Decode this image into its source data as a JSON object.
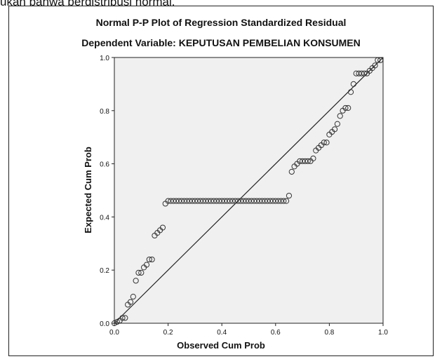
{
  "page": {
    "caption_fragment": "ukan bahwa berdistribusi normal."
  },
  "chart_data": {
    "type": "scatter",
    "title": "Normal P-P Plot of Regression Standardized Residual",
    "subtitle": "Dependent Variable: KEPUTUSAN PEMBELIAN KONSUMEN",
    "xlabel": "Observed Cum Prob",
    "ylabel": "Expected Cum Prob",
    "xlim": [
      0.0,
      1.0
    ],
    "ylim": [
      0.0,
      1.0
    ],
    "xticks": [
      0.0,
      0.2,
      0.4,
      0.6,
      0.8,
      1.0
    ],
    "yticks": [
      0.0,
      0.2,
      0.4,
      0.6,
      0.8,
      1.0
    ],
    "tick_labels": [
      "0.0",
      "0.2",
      "0.4",
      "0.6",
      "0.8",
      "1.0"
    ],
    "grid": false,
    "reference_line": {
      "from": [
        0,
        0
      ],
      "to": [
        1,
        1
      ]
    },
    "colors": {
      "plot_bg": "#f0f0f0",
      "marker": "#333333",
      "line": "#222222"
    },
    "series": [
      {
        "x": [
          0.0,
          0.01,
          0.02,
          0.03,
          0.04,
          0.05,
          0.06,
          0.07,
          0.08,
          0.09,
          0.1,
          0.11,
          0.12,
          0.13,
          0.14,
          0.15,
          0.16,
          0.17,
          0.18,
          0.19,
          0.2,
          0.21,
          0.22,
          0.23,
          0.24,
          0.25,
          0.26,
          0.27,
          0.28,
          0.29,
          0.3,
          0.31,
          0.32,
          0.33,
          0.34,
          0.35,
          0.36,
          0.37,
          0.38,
          0.39,
          0.4,
          0.41,
          0.42,
          0.43,
          0.44,
          0.45,
          0.46,
          0.47,
          0.48,
          0.49,
          0.5,
          0.51,
          0.52,
          0.53,
          0.54,
          0.55,
          0.56,
          0.57,
          0.58,
          0.59,
          0.6,
          0.61,
          0.62,
          0.63,
          0.64,
          0.65,
          0.66,
          0.67,
          0.68,
          0.69,
          0.7,
          0.71,
          0.72,
          0.73,
          0.74,
          0.75,
          0.76,
          0.77,
          0.78,
          0.79,
          0.8,
          0.81,
          0.82,
          0.83,
          0.84,
          0.85,
          0.86,
          0.87,
          0.88,
          0.89,
          0.9,
          0.91,
          0.92,
          0.93,
          0.94,
          0.95,
          0.96,
          0.97,
          0.98,
          0.99
        ],
        "y": [
          0.0,
          0.005,
          0.01,
          0.02,
          0.02,
          0.07,
          0.08,
          0.1,
          0.16,
          0.19,
          0.19,
          0.21,
          0.22,
          0.24,
          0.24,
          0.33,
          0.34,
          0.35,
          0.36,
          0.45,
          0.46,
          0.46,
          0.46,
          0.46,
          0.46,
          0.46,
          0.46,
          0.46,
          0.46,
          0.46,
          0.46,
          0.46,
          0.46,
          0.46,
          0.46,
          0.46,
          0.46,
          0.46,
          0.46,
          0.46,
          0.46,
          0.46,
          0.46,
          0.46,
          0.46,
          0.46,
          0.46,
          0.46,
          0.46,
          0.46,
          0.46,
          0.46,
          0.46,
          0.46,
          0.46,
          0.46,
          0.46,
          0.46,
          0.46,
          0.46,
          0.46,
          0.46,
          0.46,
          0.46,
          0.46,
          0.48,
          0.57,
          0.59,
          0.6,
          0.61,
          0.61,
          0.61,
          0.61,
          0.61,
          0.62,
          0.65,
          0.66,
          0.67,
          0.68,
          0.68,
          0.71,
          0.72,
          0.73,
          0.75,
          0.78,
          0.8,
          0.81,
          0.81,
          0.87,
          0.9,
          0.94,
          0.94,
          0.94,
          0.94,
          0.94,
          0.95,
          0.96,
          0.97,
          0.99,
          0.99
        ]
      }
    ]
  }
}
